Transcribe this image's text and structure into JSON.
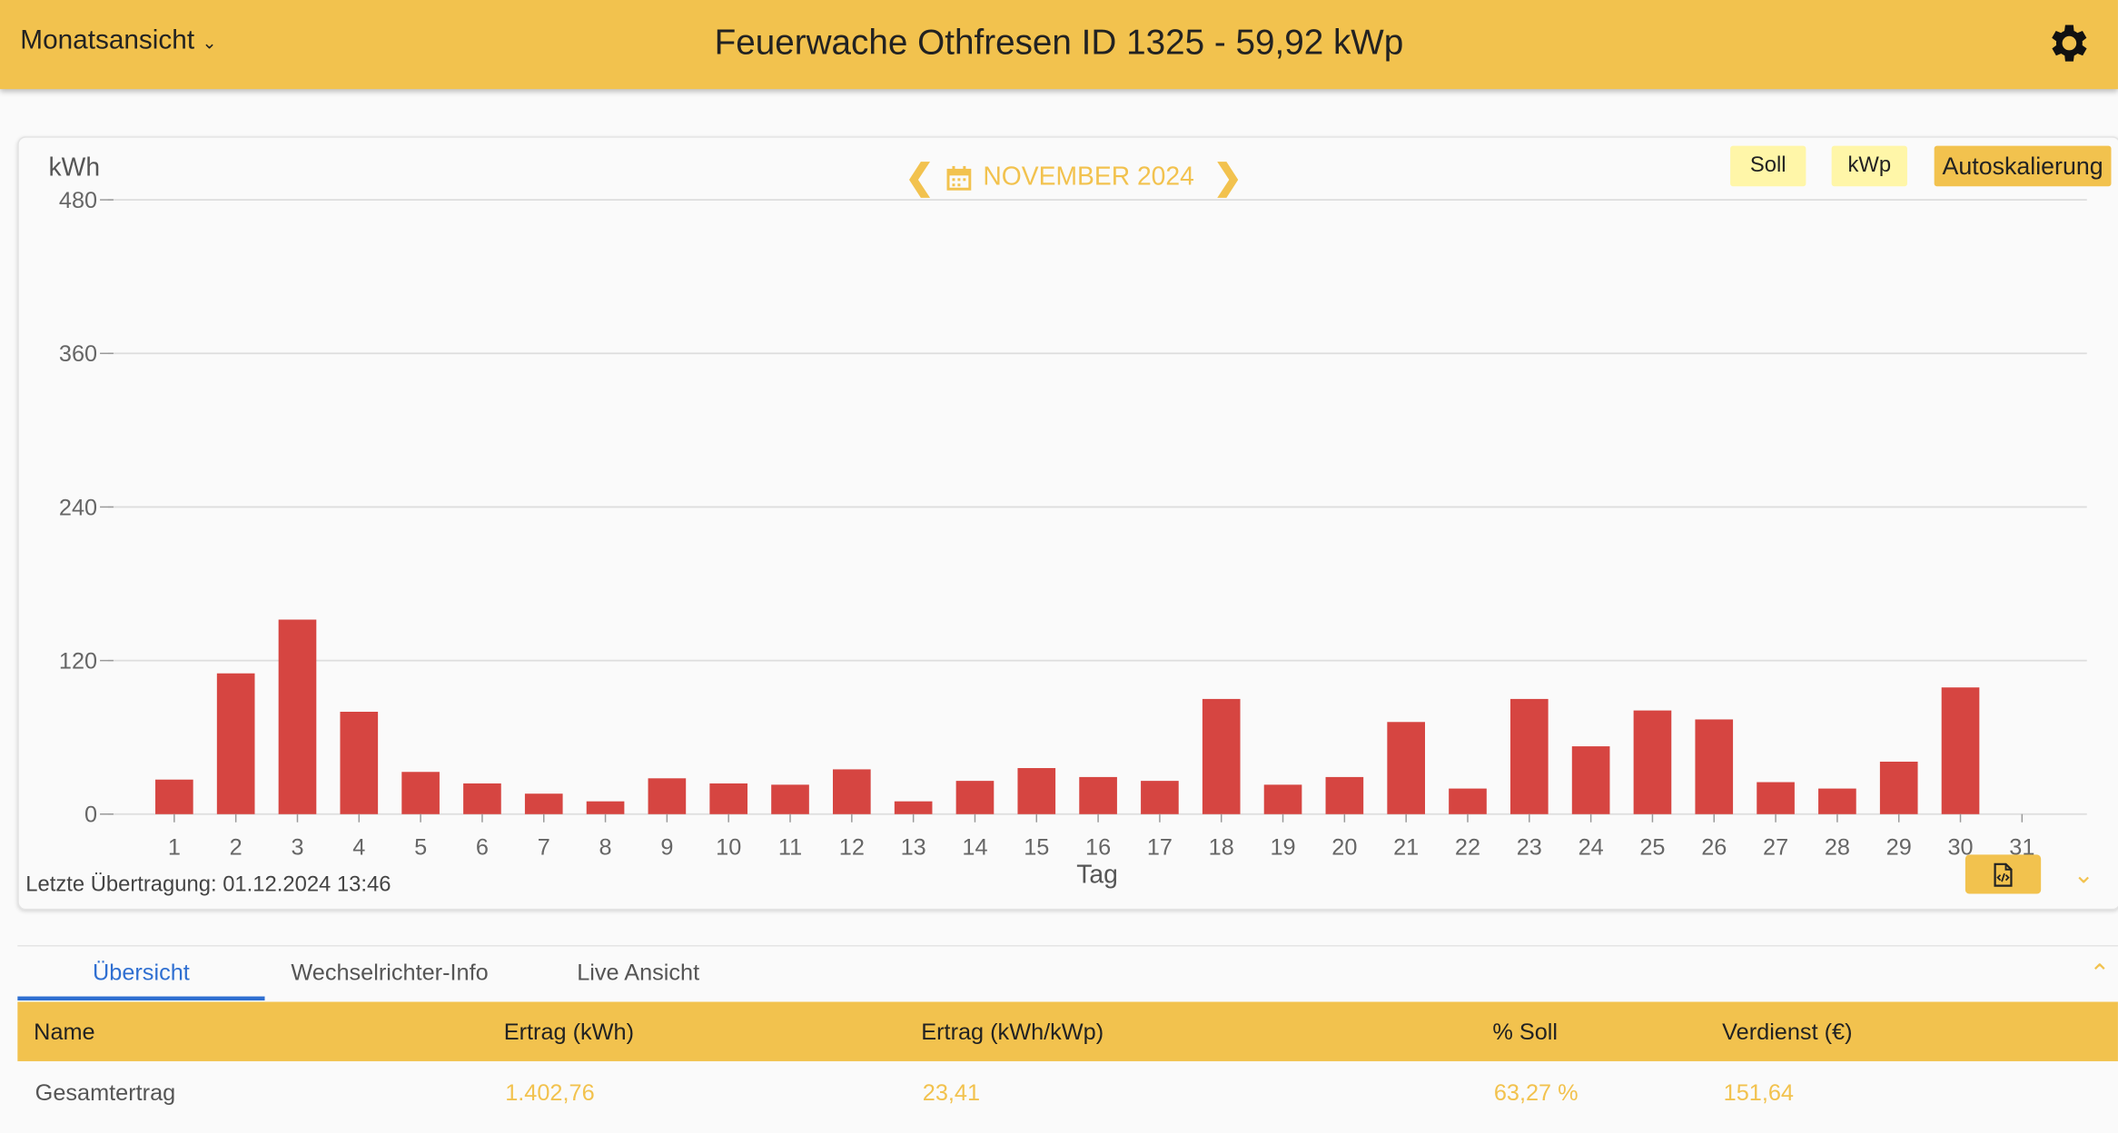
{
  "header": {
    "view_select": "Monatsansicht",
    "title": "Feuerwache Othfresen ID 1325 - 59,92 kWp",
    "settings_icon": "gear-icon"
  },
  "chart_controls": {
    "period": "NOVEMBER 2024",
    "prev_icon": "chevron-left-icon",
    "next_icon": "chevron-right-icon",
    "calendar_icon": "calendar-icon",
    "soll": "Soll",
    "kwp": "kWp",
    "autoscale": "Autoskalierung"
  },
  "footer": {
    "last_transfer": "Letzte Übertragung: 01.12.2024 13:46",
    "export_icon": "code-file-icon",
    "collapse_icon": "chevron-down-icon"
  },
  "colors": {
    "accent": "#f2c24e",
    "bar": "#d64541",
    "tab_active": "#2f6fd1",
    "soft_button": "#fff6a8"
  },
  "chart_data": {
    "type": "bar",
    "ylabel": "kWh",
    "xlabel": "Tag",
    "ylim": [
      0,
      480
    ],
    "yticks": [
      0,
      120,
      240,
      360,
      480
    ],
    "grid": true,
    "categories": [
      "1",
      "2",
      "3",
      "4",
      "5",
      "6",
      "7",
      "8",
      "9",
      "10",
      "11",
      "12",
      "13",
      "14",
      "15",
      "16",
      "17",
      "18",
      "19",
      "20",
      "21",
      "22",
      "23",
      "24",
      "25",
      "26",
      "27",
      "28",
      "29",
      "30",
      "31"
    ],
    "values": [
      27,
      110,
      152,
      80,
      33,
      24,
      16,
      10,
      28,
      24,
      23,
      35,
      10,
      26,
      36,
      29,
      26,
      90,
      23,
      29,
      72,
      20,
      90,
      53,
      81,
      74,
      25,
      20,
      41,
      99,
      0
    ]
  },
  "tabs": [
    {
      "label": "Übersicht",
      "active": true
    },
    {
      "label": "Wechselrichter-Info"
    },
    {
      "label": "Live Ansicht"
    }
  ],
  "table": {
    "headers": [
      "Name",
      "Ertrag (kWh)",
      "Ertrag (kWh/kWp)",
      "% Soll",
      "Verdienst (€)"
    ],
    "rows": [
      [
        "Gesamtertrag",
        "1.402,76",
        "23,41",
        "63,27 %",
        "151,64"
      ]
    ]
  }
}
